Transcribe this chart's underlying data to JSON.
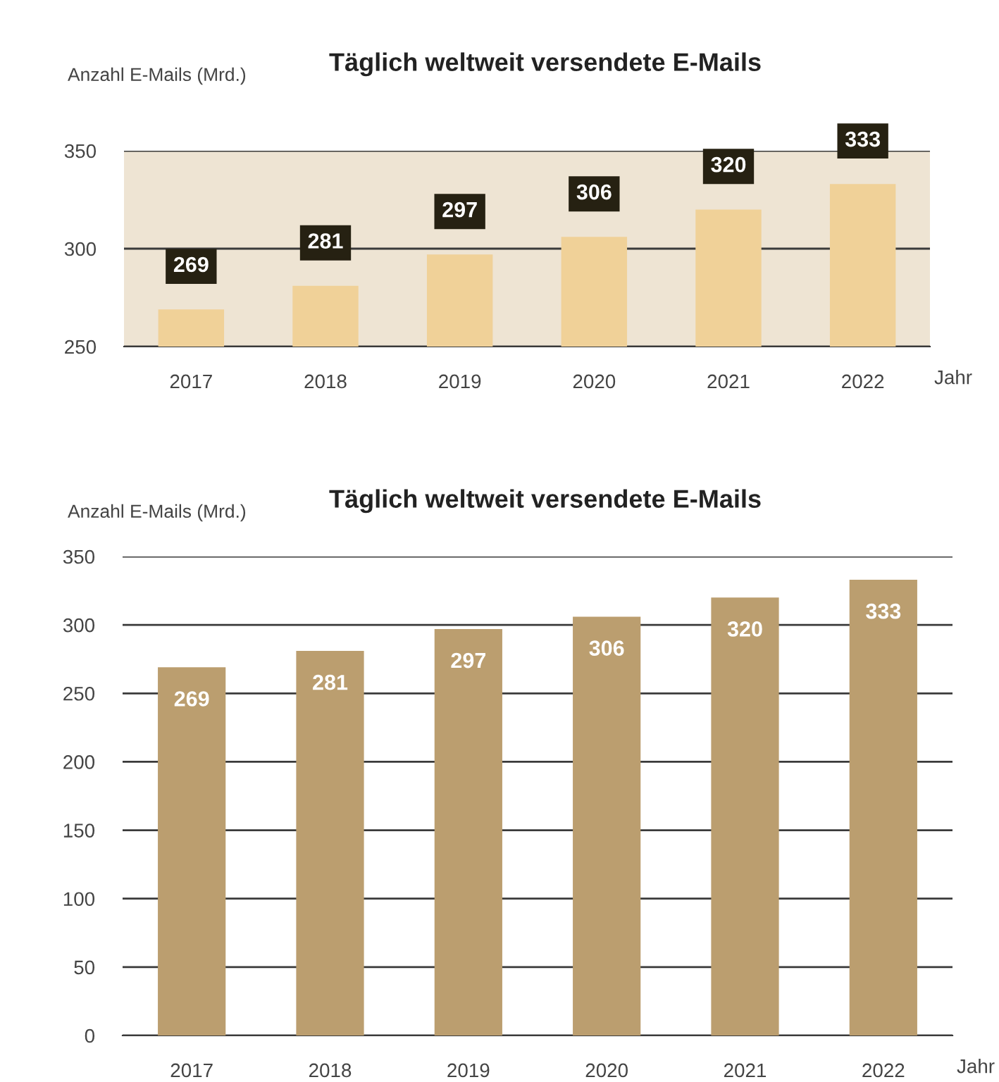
{
  "chart_data": [
    {
      "type": "bar",
      "title": "Täglich weltweit versendete E-Mails",
      "ylabel": "Anzahl E-Mails (Mrd.)",
      "xlabel": "Jahr",
      "categories": [
        "2017",
        "2018",
        "2019",
        "2020",
        "2021",
        "2022"
      ],
      "values": [
        269,
        281,
        297,
        306,
        320,
        333
      ],
      "color": "#f0d198",
      "ylim": [
        250,
        350
      ],
      "yticks": [
        250,
        300,
        350
      ],
      "grid": "y",
      "data_labels": true
    },
    {
      "type": "bar",
      "title": "Täglich weltweit versendete E-Mails",
      "ylabel": "Anzahl E-Mails (Mrd.)",
      "xlabel": "Jahr",
      "categories": [
        "2017",
        "2018",
        "2019",
        "2020",
        "2021",
        "2022"
      ],
      "values": [
        269,
        281,
        297,
        306,
        320,
        333
      ],
      "color": "#bb9e6f",
      "ylim": [
        0,
        350
      ],
      "yticks": [
        0,
        50,
        100,
        150,
        200,
        250,
        300,
        350
      ],
      "grid": "y",
      "data_labels": true
    }
  ]
}
